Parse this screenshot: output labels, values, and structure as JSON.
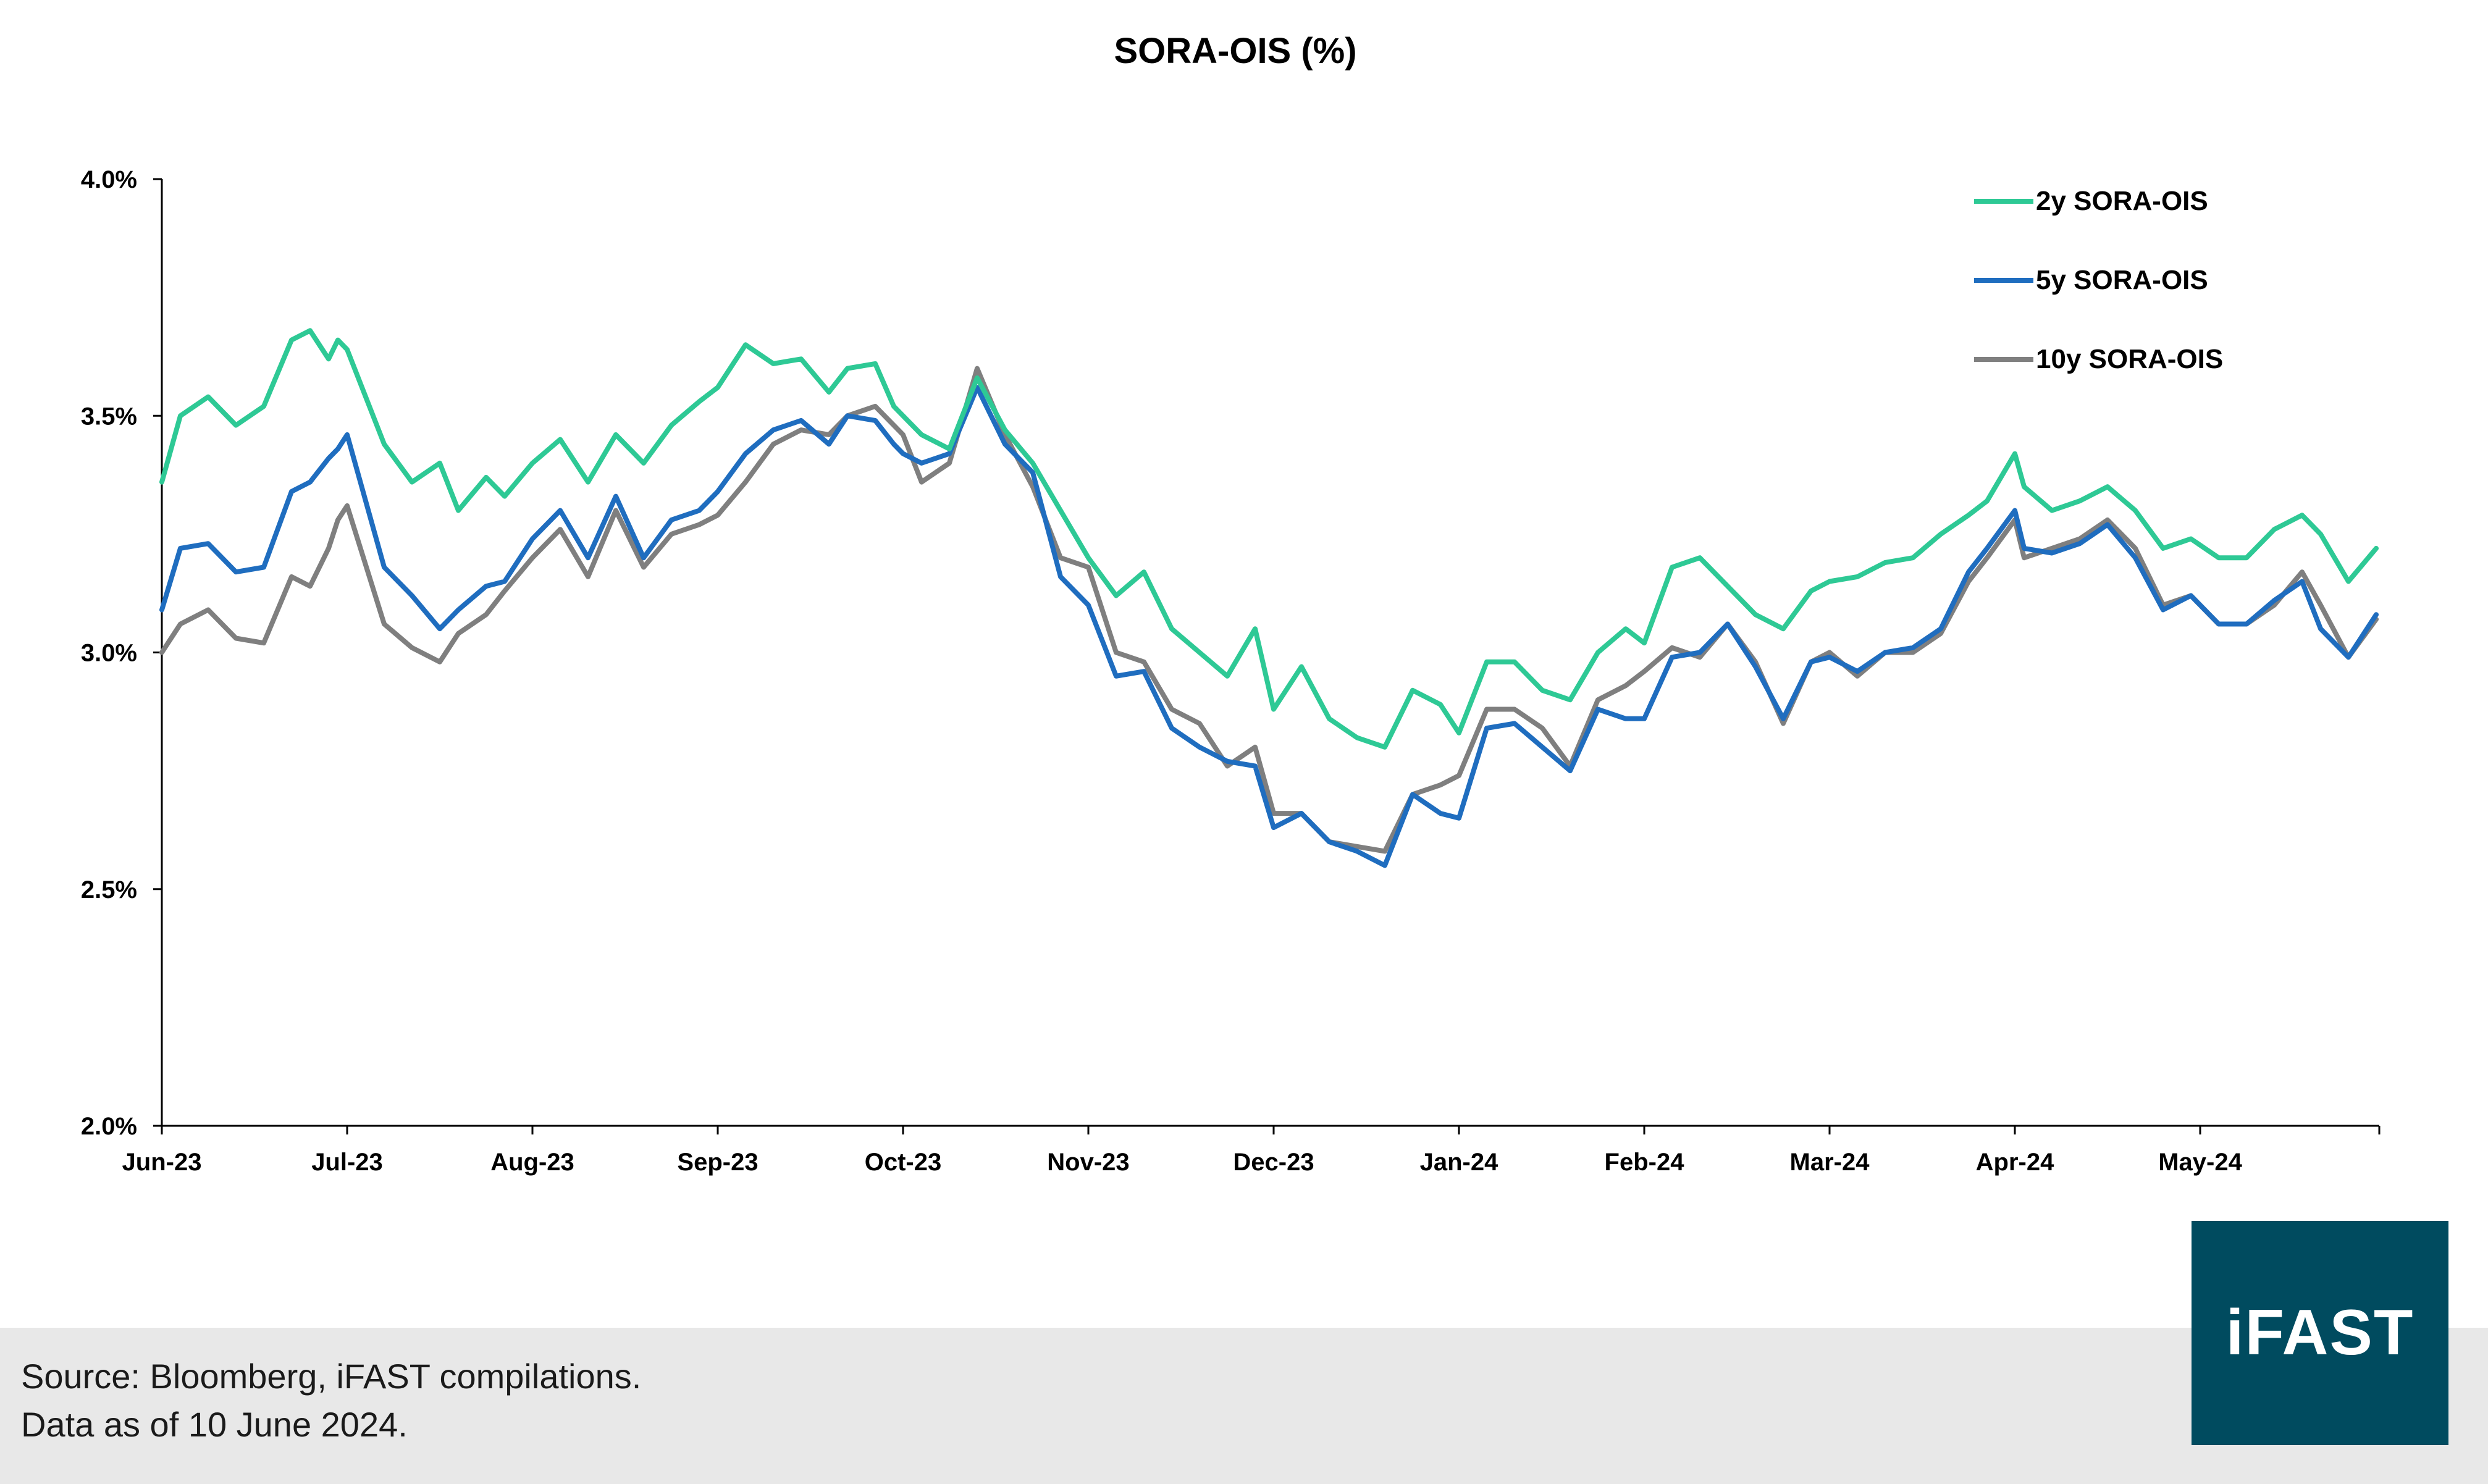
{
  "chart_data": {
    "type": "line",
    "title": "SORA-OIS (%)",
    "xlabel": "",
    "ylabel": "",
    "ylim": [
      2.0,
      4.0
    ],
    "yticks": [
      "2.0%",
      "2.5%",
      "3.0%",
      "3.5%",
      "4.0%"
    ],
    "ytick_values": [
      2.0,
      2.5,
      3.0,
      3.5,
      4.0
    ],
    "xlim_months": [
      0,
      12
    ],
    "x_ticks": [
      {
        "label": "Jun-23",
        "m": 0
      },
      {
        "label": "Jul-23",
        "m": 1
      },
      {
        "label": "Aug-23",
        "m": 2
      },
      {
        "label": "Sep-23",
        "m": 3
      },
      {
        "label": "Oct-23",
        "m": 4
      },
      {
        "label": "Nov-23",
        "m": 5
      },
      {
        "label": "Dec-23",
        "m": 6
      },
      {
        "label": "Jan-24",
        "m": 7
      },
      {
        "label": "Feb-24",
        "m": 8
      },
      {
        "label": "Mar-24",
        "m": 9
      },
      {
        "label": "Apr-24",
        "m": 10
      },
      {
        "label": "May-24",
        "m": 11
      }
    ],
    "legend_position": "top-right",
    "x_months": [
      0,
      0.1,
      0.25,
      0.4,
      0.55,
      0.7,
      0.8,
      0.9,
      0.95,
      1.0,
      1.2,
      1.35,
      1.5,
      1.6,
      1.75,
      1.85,
      2.0,
      2.15,
      2.3,
      2.45,
      2.6,
      2.75,
      2.9,
      3.0,
      3.15,
      3.3,
      3.45,
      3.6,
      3.7,
      3.85,
      3.95,
      4.0,
      4.1,
      4.25,
      4.4,
      4.55,
      4.7,
      4.85,
      5.0,
      5.15,
      5.3,
      5.45,
      5.6,
      5.75,
      5.9,
      6.0,
      6.15,
      6.3,
      6.45,
      6.6,
      6.75,
      6.9,
      7.0,
      7.15,
      7.3,
      7.45,
      7.6,
      7.75,
      7.9,
      8.0,
      8.15,
      8.3,
      8.45,
      8.6,
      8.75,
      8.9,
      9.0,
      9.15,
      9.3,
      9.45,
      9.6,
      9.75,
      9.85,
      10.0,
      10.05,
      10.2,
      10.35,
      10.5,
      10.65,
      10.8,
      10.95,
      11.1,
      11.25,
      11.4,
      11.55,
      11.65,
      11.8,
      11.95
    ],
    "series": [
      {
        "name": "2y SORA-OIS",
        "color": "#2ec995",
        "values": [
          3.36,
          3.5,
          3.54,
          3.48,
          3.52,
          3.66,
          3.68,
          3.62,
          3.66,
          3.64,
          3.44,
          3.36,
          3.4,
          3.3,
          3.37,
          3.33,
          3.4,
          3.45,
          3.36,
          3.46,
          3.4,
          3.48,
          3.53,
          3.56,
          3.65,
          3.61,
          3.62,
          3.55,
          3.6,
          3.61,
          3.52,
          3.5,
          3.46,
          3.43,
          3.58,
          3.47,
          3.4,
          3.3,
          3.2,
          3.12,
          3.17,
          3.05,
          3.0,
          2.95,
          3.05,
          2.88,
          2.97,
          2.86,
          2.82,
          2.8,
          2.92,
          2.89,
          2.83,
          2.98,
          2.98,
          2.92,
          2.9,
          3.0,
          3.05,
          3.02,
          3.18,
          3.2,
          3.14,
          3.08,
          3.05,
          3.13,
          3.15,
          3.16,
          3.19,
          3.2,
          3.25,
          3.29,
          3.32,
          3.42,
          3.35,
          3.3,
          3.32,
          3.35,
          3.3,
          3.22,
          3.24,
          3.2,
          3.2,
          3.26,
          3.29,
          3.25,
          3.15,
          3.22
        ]
      },
      {
        "name": "5y SORA-OIS",
        "color": "#1f6dbf",
        "values": [
          3.09,
          3.22,
          3.23,
          3.17,
          3.18,
          3.34,
          3.36,
          3.41,
          3.43,
          3.46,
          3.18,
          3.12,
          3.05,
          3.09,
          3.14,
          3.15,
          3.24,
          3.3,
          3.2,
          3.33,
          3.2,
          3.28,
          3.3,
          3.34,
          3.42,
          3.47,
          3.49,
          3.44,
          3.5,
          3.49,
          3.44,
          3.42,
          3.4,
          3.42,
          3.56,
          3.44,
          3.38,
          3.16,
          3.1,
          2.95,
          2.96,
          2.84,
          2.8,
          2.77,
          2.76,
          2.63,
          2.66,
          2.6,
          2.58,
          2.55,
          2.7,
          2.66,
          2.65,
          2.84,
          2.85,
          2.8,
          2.75,
          2.88,
          2.86,
          2.86,
          2.99,
          3.0,
          3.06,
          2.97,
          2.86,
          2.98,
          2.99,
          2.96,
          3.0,
          3.01,
          3.05,
          3.17,
          3.22,
          3.3,
          3.22,
          3.21,
          3.23,
          3.27,
          3.2,
          3.09,
          3.12,
          3.06,
          3.06,
          3.11,
          3.15,
          3.05,
          2.99,
          3.08
        ]
      },
      {
        "name": "10y SORA-OIS",
        "color": "#7f7f7f",
        "values": [
          3.0,
          3.06,
          3.09,
          3.03,
          3.02,
          3.16,
          3.14,
          3.22,
          3.28,
          3.31,
          3.06,
          3.01,
          2.98,
          3.04,
          3.08,
          3.13,
          3.2,
          3.26,
          3.16,
          3.3,
          3.18,
          3.25,
          3.27,
          3.29,
          3.36,
          3.44,
          3.47,
          3.46,
          3.5,
          3.52,
          3.48,
          3.46,
          3.36,
          3.4,
          3.6,
          3.46,
          3.35,
          3.2,
          3.18,
          3.0,
          2.98,
          2.88,
          2.85,
          2.76,
          2.8,
          2.66,
          2.66,
          2.6,
          2.59,
          2.58,
          2.7,
          2.72,
          2.74,
          2.88,
          2.88,
          2.84,
          2.76,
          2.9,
          2.93,
          2.96,
          3.01,
          2.99,
          3.06,
          2.98,
          2.85,
          2.98,
          3.0,
          2.95,
          3.0,
          3.0,
          3.04,
          3.15,
          3.2,
          3.28,
          3.2,
          3.22,
          3.24,
          3.28,
          3.22,
          3.1,
          3.12,
          3.06,
          3.06,
          3.1,
          3.17,
          3.1,
          2.99,
          3.07
        ]
      }
    ]
  },
  "footer": {
    "source": "Source: Bloomberg, iFAST compilations.",
    "date_note": "Data as of 10 June 2024."
  },
  "logo": {
    "text": "iFAST",
    "color": "#004b5f"
  }
}
